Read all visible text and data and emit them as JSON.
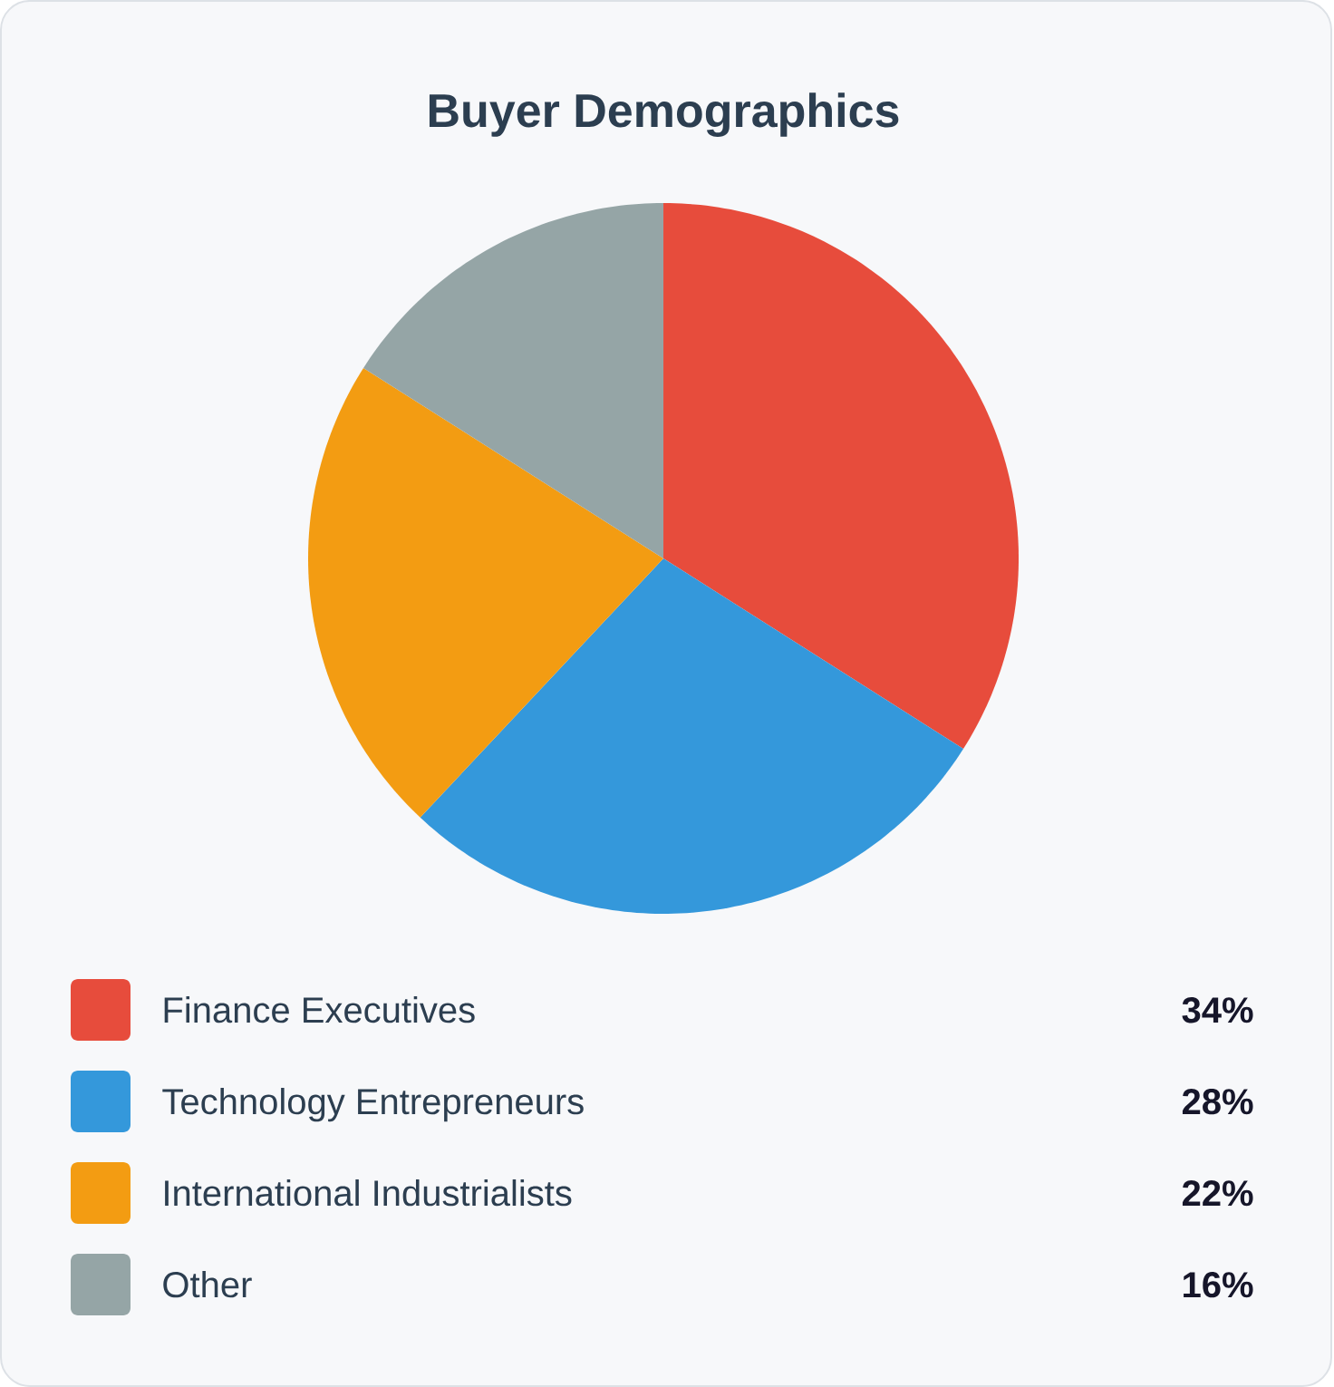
{
  "chart_data": {
    "type": "pie",
    "title": "Buyer Demographics",
    "categories": [
      "Finance Executives",
      "Technology Entrepreneurs",
      "International Industrialists",
      "Other"
    ],
    "values": [
      34,
      28,
      22,
      16
    ],
    "colors": [
      "#e74c3c",
      "#3498db",
      "#f39c12",
      "#95a5a6"
    ],
    "value_labels": [
      "34%",
      "28%",
      "22%",
      "16%"
    ],
    "legend": "bottom"
  }
}
